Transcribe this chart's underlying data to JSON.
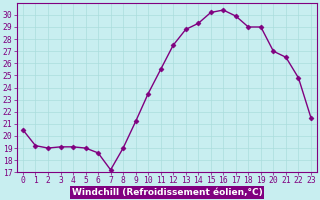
{
  "x": [
    0,
    1,
    2,
    3,
    4,
    5,
    6,
    7,
    8,
    9,
    10,
    11,
    12,
    13,
    14,
    15,
    16,
    17,
    18,
    19,
    20,
    21,
    22,
    23
  ],
  "y": [
    20.5,
    19.2,
    19.0,
    19.1,
    19.1,
    19.0,
    18.6,
    17.2,
    19.0,
    21.2,
    23.5,
    25.5,
    27.5,
    28.8,
    29.3,
    30.2,
    30.4,
    29.9,
    29.0,
    29.0,
    27.0,
    26.5,
    24.8,
    21.5
  ],
  "line_color": "#800080",
  "marker": "D",
  "marker_size": 2.5,
  "plot_bg_color": "#c8eef0",
  "fig_bg_color": "#c8eef0",
  "grid_color": "#aadddd",
  "xlabel": "Windchill (Refroidissement éolien,°C)",
  "xlim": [
    -0.5,
    23.5
  ],
  "ylim": [
    17,
    31
  ],
  "yticks": [
    17,
    18,
    19,
    20,
    21,
    22,
    23,
    24,
    25,
    26,
    27,
    28,
    29,
    30
  ],
  "xticks": [
    0,
    1,
    2,
    3,
    4,
    5,
    6,
    7,
    8,
    9,
    10,
    11,
    12,
    13,
    14,
    15,
    16,
    17,
    18,
    19,
    20,
    21,
    22,
    23
  ],
  "xlabel_fontsize": 6.5,
  "tick_fontsize": 5.8,
  "label_color": "#800080",
  "spine_color": "#800080",
  "xlabel_bg_color": "#800080",
  "xlabel_text_color": "#ffffff",
  "linewidth": 1.0
}
